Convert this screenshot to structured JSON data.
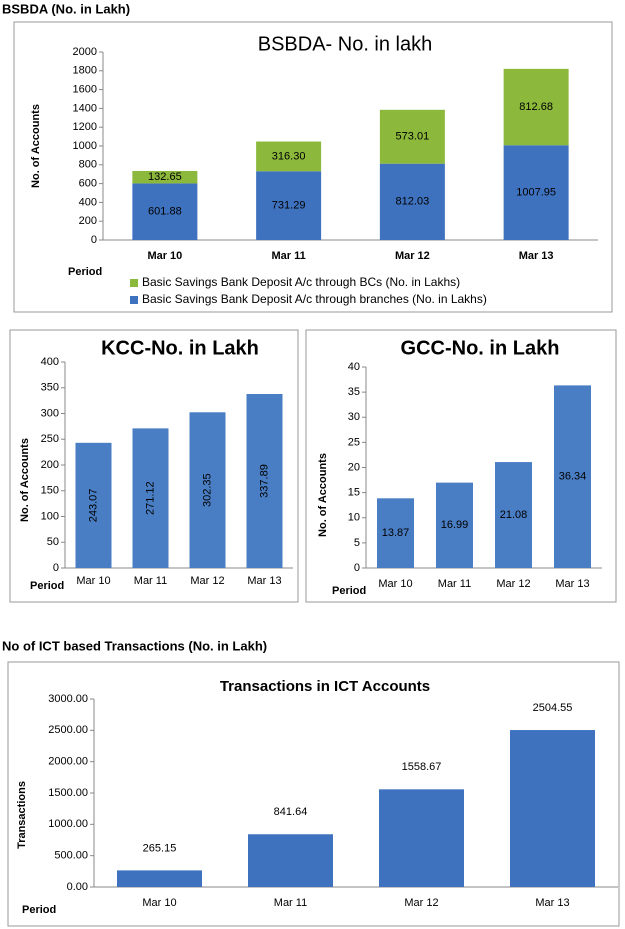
{
  "headings": [
    "BSBDA (No. in Lakh)",
    "No of ICT based Transactions (No. in Lakh)"
  ],
  "chart_data": [
    {
      "type": "bar",
      "stacked": true,
      "title": "BSBDA- No. in lakh",
      "y_label": "No. of Accounts",
      "x_label": "Period",
      "categories": [
        "Mar 10",
        "Mar 11",
        "Mar 12",
        "Mar 13"
      ],
      "series": [
        {
          "name": "Basic Savings Bank Deposit A/c through branches (No. in Lakhs)",
          "color": "#3e72bf",
          "values": [
            601.88,
            731.29,
            812.03,
            1007.95
          ]
        },
        {
          "name": "Basic Savings Bank Deposit A/c through BCs (No. in Lakhs)",
          "color": "#8cb83c",
          "values": [
            132.65,
            316.3,
            573.01,
            812.68
          ],
          "value_labels": [
            "132.65",
            "316.30",
            "573.01",
            "812.68"
          ]
        }
      ],
      "ylim": [
        0,
        2000
      ],
      "yticks": [
        0,
        200,
        400,
        600,
        800,
        1000,
        1200,
        1400,
        1600,
        1800,
        2000
      ]
    },
    {
      "type": "bar",
      "title": "KCC-No. in Lakh",
      "y_label": "No. of Accounts",
      "x_label": "Period",
      "categories": [
        "Mar 10",
        "Mar 11",
        "Mar 12",
        "Mar 13"
      ],
      "values": [
        243.07,
        271.12,
        302.35,
        337.89
      ],
      "color": "#4a7ec4",
      "ylim": [
        0,
        400
      ],
      "yticks": [
        0,
        50,
        100,
        150,
        200,
        250,
        300,
        350,
        400
      ]
    },
    {
      "type": "bar",
      "title": "GCC-No. in Lakh",
      "y_label": "No. of Accounts",
      "x_label": "Period",
      "categories": [
        "Mar 10",
        "Mar 11",
        "Mar 12",
        "Mar 13"
      ],
      "values": [
        13.87,
        16.99,
        21.08,
        36.34
      ],
      "color": "#4a7ec4",
      "ylim": [
        0,
        40
      ],
      "yticks": [
        0,
        5,
        10,
        15,
        20,
        25,
        30,
        35,
        40
      ]
    },
    {
      "type": "bar",
      "title": "Transactions in ICT Accounts",
      "y_label": "Transactions",
      "x_label": "Period",
      "categories": [
        "Mar 10",
        "Mar 11",
        "Mar 12",
        "Mar 13"
      ],
      "values": [
        265.15,
        841.64,
        1558.67,
        2504.55
      ],
      "color": "#3e72bf",
      "ylim": [
        0,
        3000
      ],
      "yticks": [
        {
          "value": 0,
          "label": "0.00"
        },
        {
          "value": 500,
          "label": "500.00"
        },
        {
          "value": 1000,
          "label": "1000.00"
        },
        {
          "value": 1500,
          "label": "1500.00"
        },
        {
          "value": 2000,
          "label": "2000.00"
        },
        {
          "value": 2500,
          "label": "2500.00"
        },
        {
          "value": 3000,
          "label": "3000.00"
        }
      ]
    }
  ]
}
